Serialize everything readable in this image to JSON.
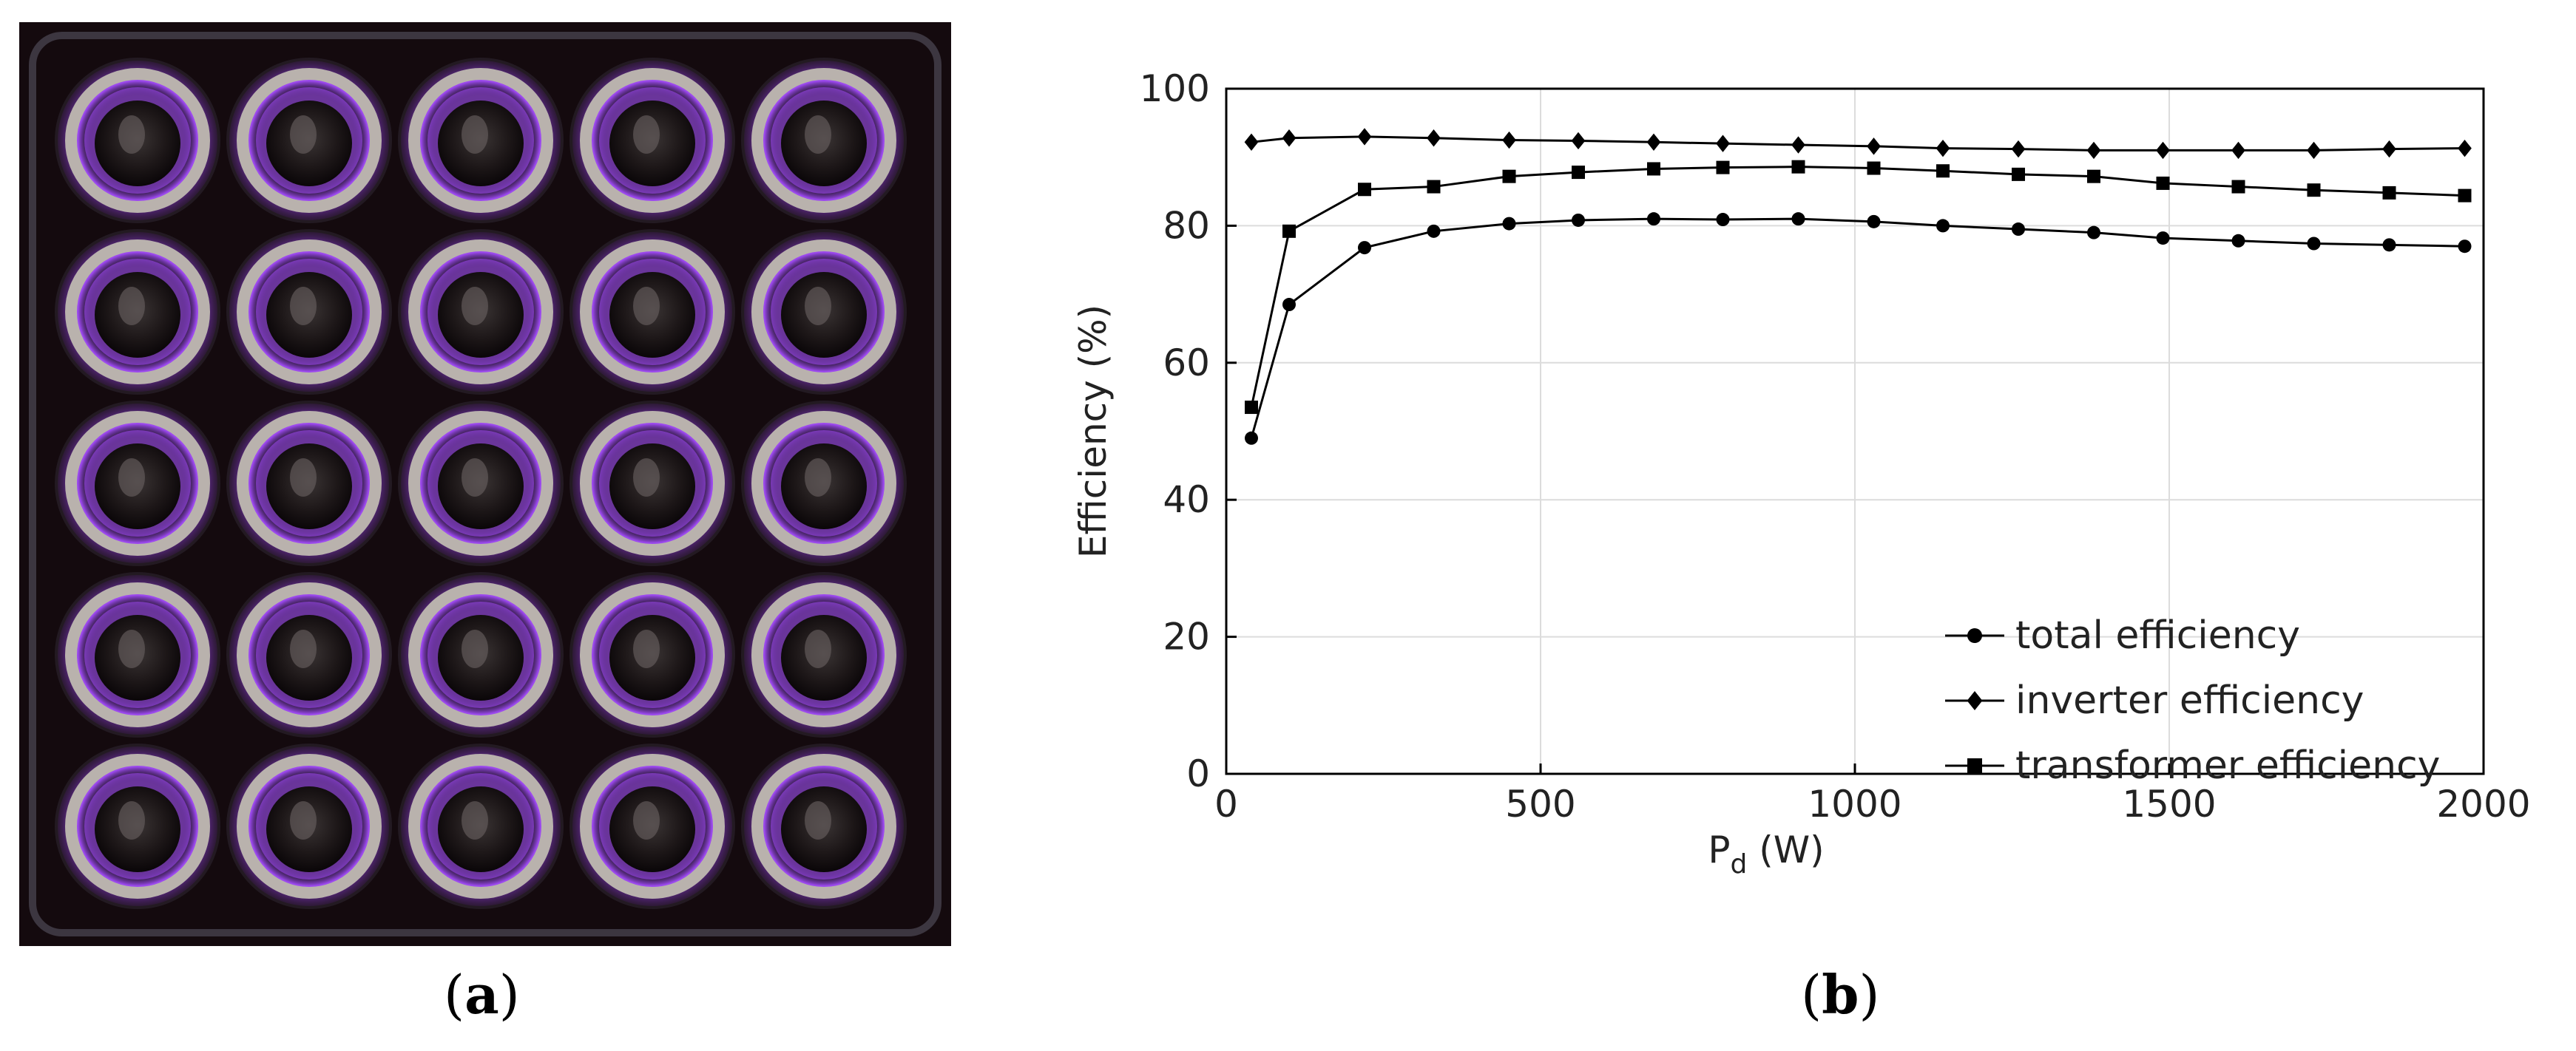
{
  "panels": {
    "a": {
      "caption_open": "(",
      "caption_letter": "a",
      "caption_close": ")",
      "photo": {
        "grid_rows": 5,
        "grid_cols": 5,
        "glow_color": "#a64dff",
        "background_color": "#140a0e",
        "ring_color": "#b9b2ad"
      }
    },
    "b": {
      "caption_open": "(",
      "caption_letter": "b",
      "caption_close": ")"
    }
  },
  "chart_data": {
    "type": "line",
    "title": "",
    "xlabel": "P",
    "xlabel_sub": "d",
    "xlabel_unit": " (W)",
    "ylabel": "Efficiency (%)",
    "xlim": [
      0,
      2000
    ],
    "ylim": [
      0,
      100
    ],
    "xticks": [
      0,
      500,
      1000,
      1500,
      2000
    ],
    "yticks": [
      0,
      20,
      40,
      60,
      80,
      100
    ],
    "grid": true,
    "legend_position": "bottom-right",
    "x": [
      40,
      100,
      220,
      330,
      450,
      560,
      680,
      790,
      910,
      1030,
      1140,
      1260,
      1380,
      1490,
      1610,
      1730,
      1850,
      1970
    ],
    "series": [
      {
        "name": "total efficiency",
        "marker": "circle",
        "values": [
          49,
          68.5,
          76.8,
          79.2,
          80.3,
          80.8,
          81.0,
          80.9,
          81.0,
          80.6,
          80.0,
          79.5,
          79.0,
          78.2,
          77.8,
          77.4,
          77.2,
          77.0
        ]
      },
      {
        "name": "inverter efficiency",
        "marker": "diamond",
        "values": [
          92.2,
          92.8,
          93.0,
          92.8,
          92.5,
          92.4,
          92.2,
          92.0,
          91.8,
          91.6,
          91.3,
          91.2,
          91.0,
          91.0,
          91.0,
          91.0,
          91.2,
          91.3
        ]
      },
      {
        "name": "transformer efficiency",
        "marker": "square",
        "values": [
          53.5,
          79.2,
          85.3,
          85.7,
          87.2,
          87.8,
          88.3,
          88.5,
          88.6,
          88.4,
          88.0,
          87.5,
          87.2,
          86.2,
          85.7,
          85.2,
          84.8,
          84.4
        ]
      }
    ]
  }
}
